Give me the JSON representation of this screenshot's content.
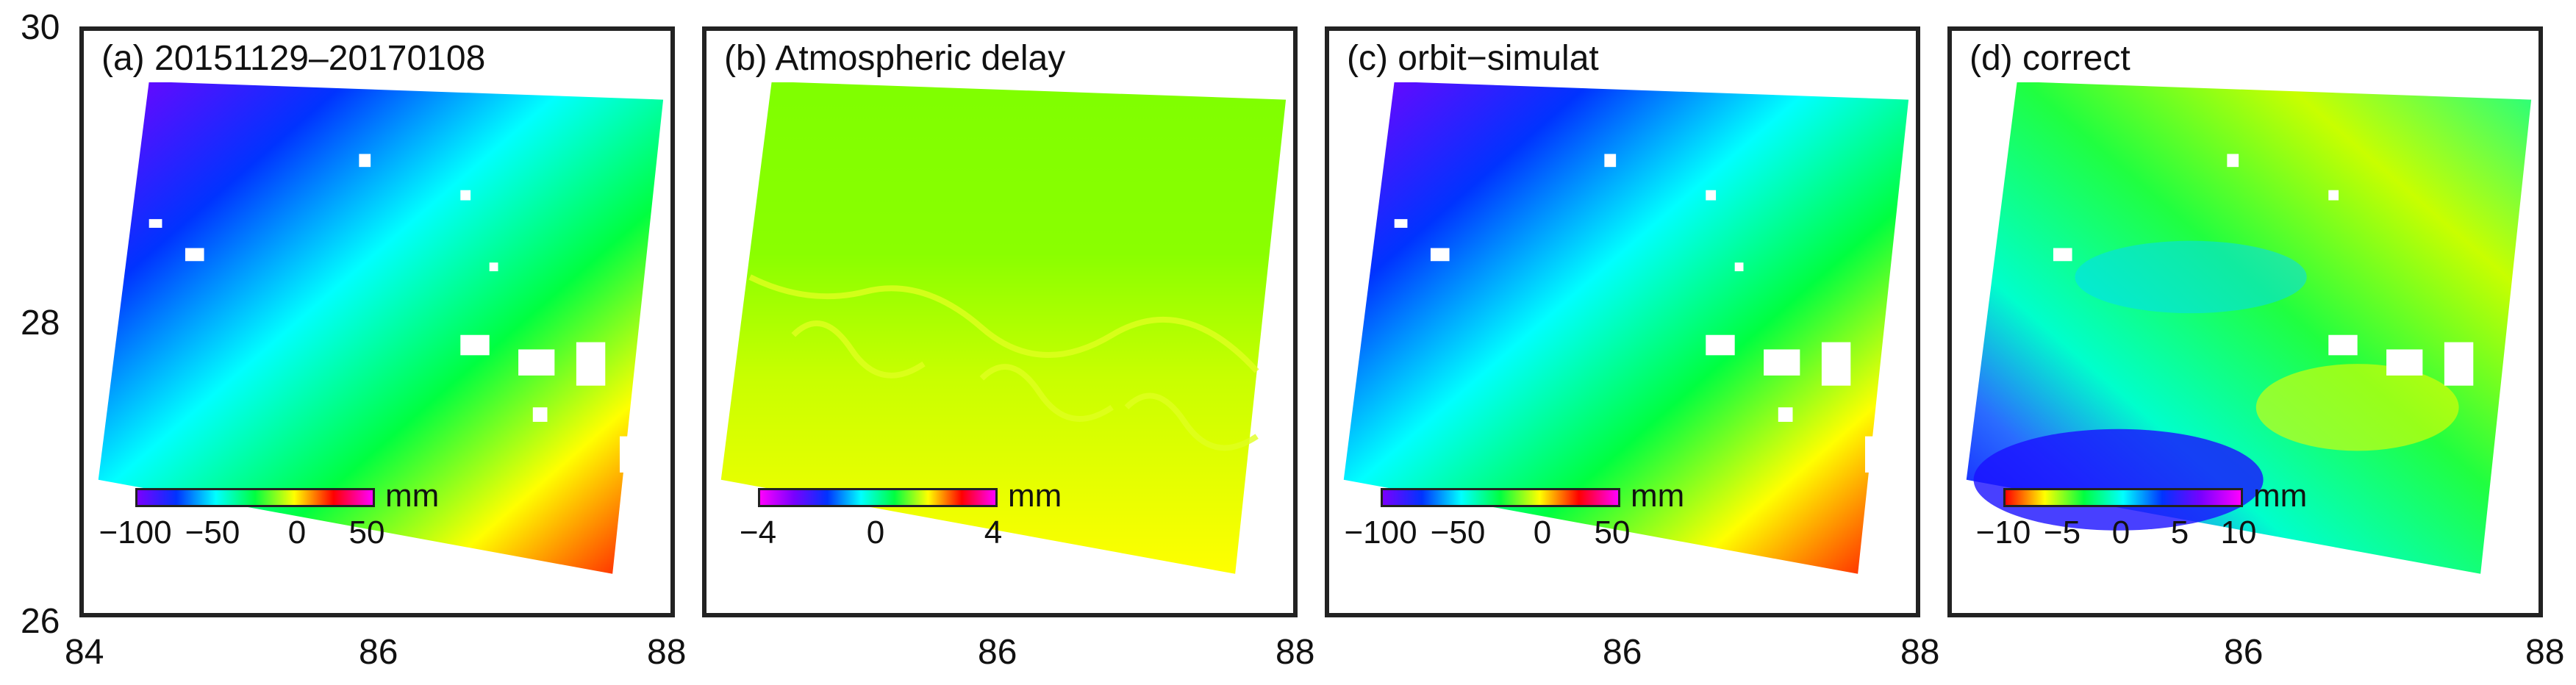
{
  "axes": {
    "y_labels": [
      "30",
      "28",
      "26"
    ],
    "x_labels_first": [
      "84",
      "86",
      "88"
    ],
    "x_labels_other": [
      "86",
      "88"
    ]
  },
  "panels": [
    {
      "title": "(a) 20151129‒20170108",
      "unit": "mm",
      "ticks": [
        "−100",
        "−50",
        "0",
        "50"
      ]
    },
    {
      "title": "(b) Atmospheric delay",
      "unit": "mm",
      "ticks": [
        "−4",
        "0",
        "4"
      ]
    },
    {
      "title": "(c) orbit−simulat",
      "unit": "mm",
      "ticks": [
        "−100",
        "−50",
        "0",
        "50"
      ]
    },
    {
      "title": "(d) correct",
      "unit": "mm",
      "ticks": [
        "−10",
        "−5",
        "0",
        "5",
        "10"
      ]
    }
  ],
  "colors": {
    "rainbow": [
      "#7a00ff",
      "#0033ff",
      "#00ffff",
      "#00ff40",
      "#ffff00",
      "#ff0000"
    ],
    "atmos": [
      "#7fff00",
      "#c8ff00",
      "#ffff00"
    ],
    "correct": [
      "#0a00ff",
      "#2a6cff",
      "#00ffcc",
      "#20ff40",
      "#c8ff00",
      "#ffff00"
    ]
  }
}
